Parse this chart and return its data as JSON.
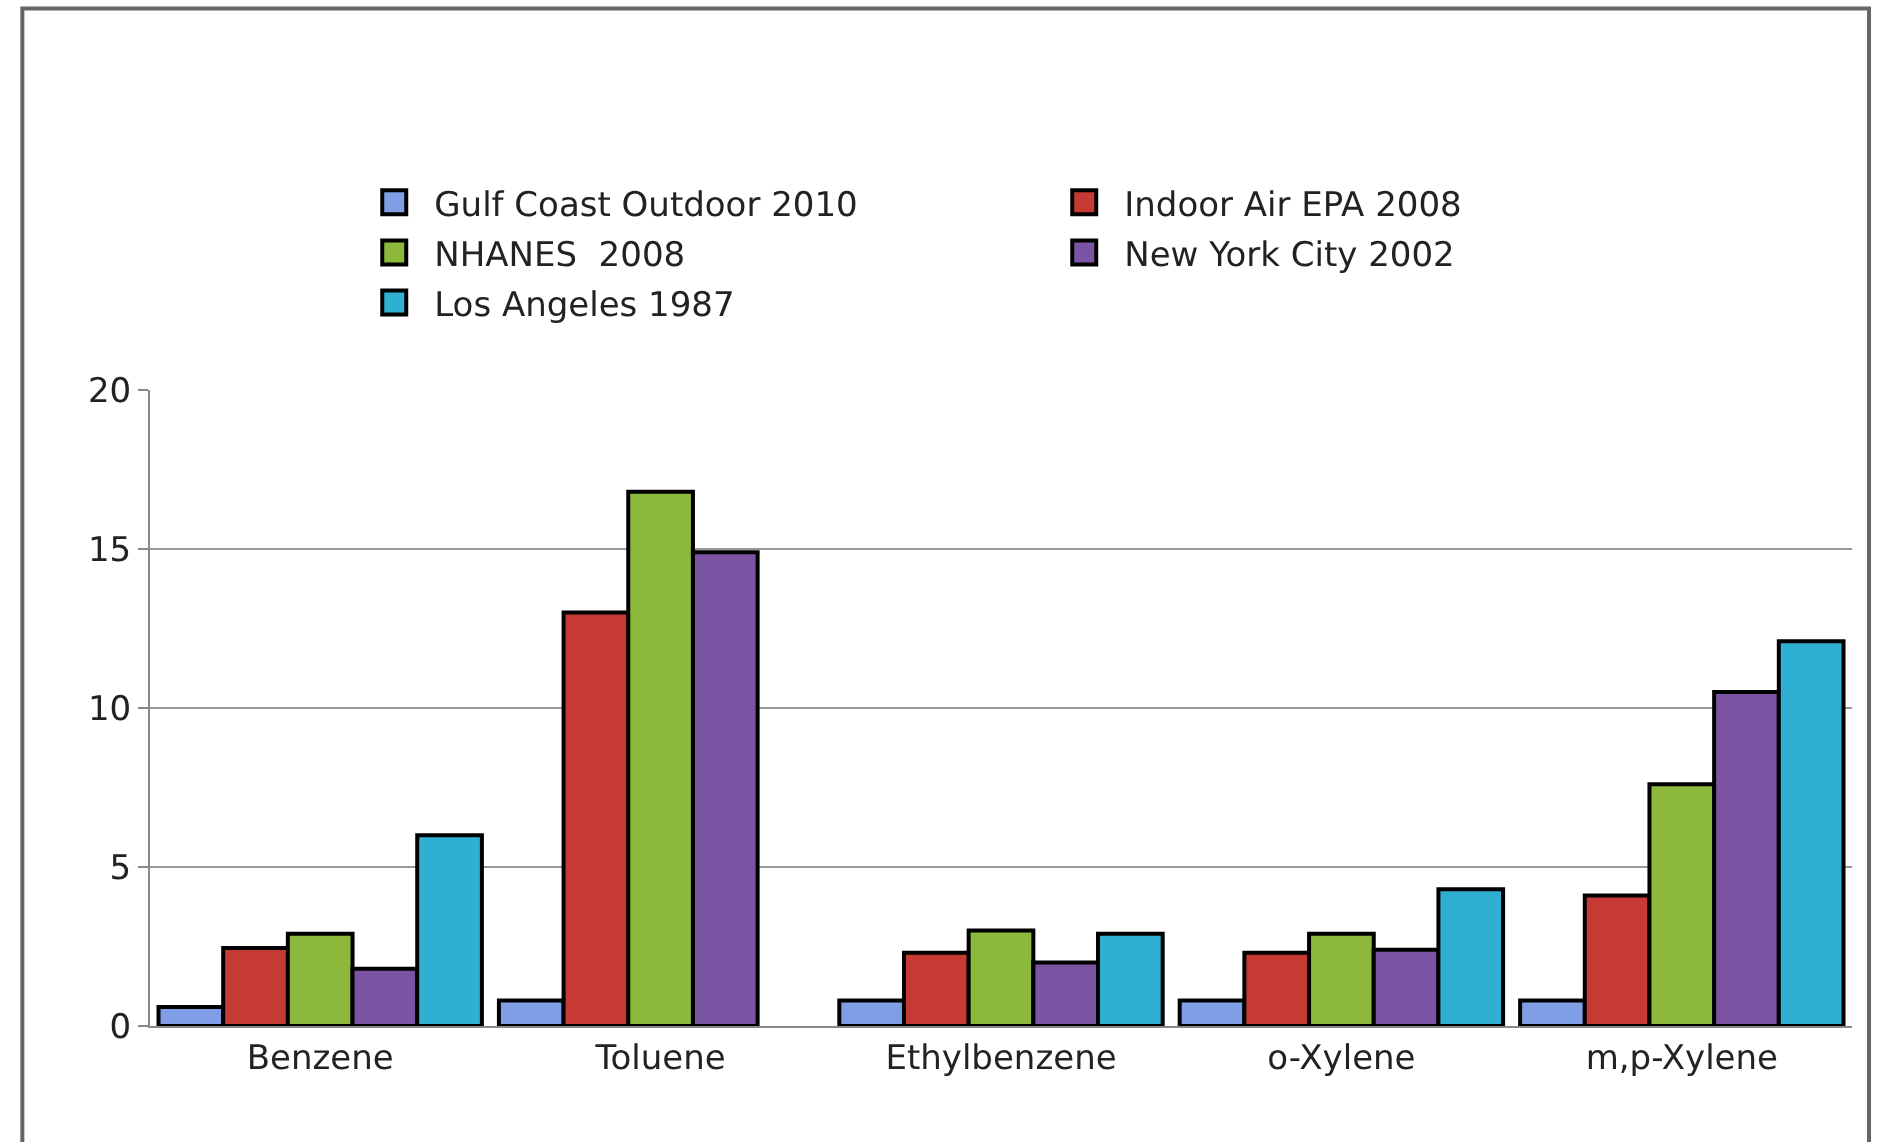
{
  "chart_data": {
    "type": "bar",
    "categories": [
      "Benzene",
      "Toluene",
      "Ethylbenzene",
      "o-Xylene",
      "m,p-Xylene"
    ],
    "series": [
      {
        "name": "Gulf Coast Outdoor 2010",
        "color": "#7f9ee6",
        "values": [
          0.6,
          0.8,
          0.8,
          0.8,
          0.8
        ]
      },
      {
        "name": "Indoor Air EPA 2008",
        "color": "#c63a34",
        "values": [
          2.45,
          13.0,
          2.3,
          2.3,
          4.1
        ]
      },
      {
        "name": "NHANES  2008",
        "color": "#8cb83c",
        "values": [
          2.9,
          16.8,
          3.0,
          2.9,
          7.6
        ]
      },
      {
        "name": "New York City 2002",
        "color": "#7a54a3",
        "values": [
          1.8,
          14.9,
          2.0,
          2.4,
          10.5
        ]
      },
      {
        "name": "Los Angeles 1987",
        "color": "#2fb0d2",
        "values": [
          6.0,
          null,
          2.9,
          4.3,
          12.1
        ]
      }
    ],
    "ylim": [
      0,
      20
    ],
    "yticks": [
      0,
      5,
      10,
      15,
      20
    ],
    "grid": "y",
    "legend": "top"
  }
}
